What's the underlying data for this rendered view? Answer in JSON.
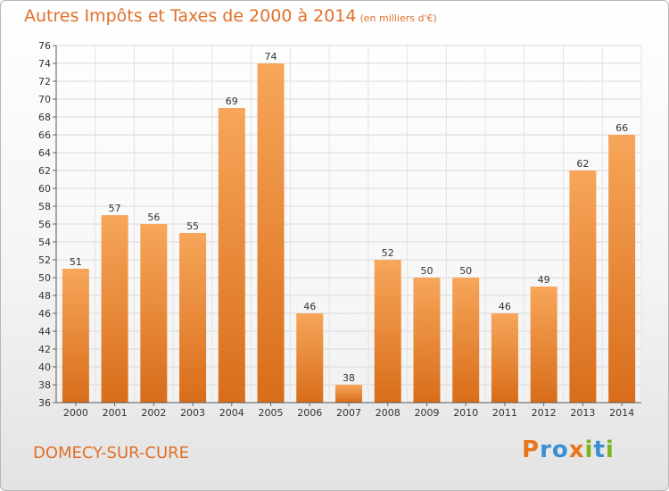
{
  "header": {
    "title": "Autres Impôts et Taxes de 2000 à 2014",
    "subtitle": "(en milliers d'€)"
  },
  "footer": {
    "commune": "DOMECY-SUR-CURE",
    "logo_text": "Proxiti"
  },
  "colors": {
    "accent": "#e0702a",
    "bar_light": "#f7a65a",
    "bar_dark": "#d86d1a",
    "logo_letters": [
      "#e8751c",
      "#3b8fd0",
      "#3b8fd0",
      "#e8751c",
      "#7ab51d",
      "#3b8fd0",
      "#7ab51d"
    ]
  },
  "chart_data": {
    "type": "bar",
    "title": "Autres Impôts et Taxes de 2000 à 2014",
    "subtitle": "(en milliers d'€)",
    "categories": [
      "2000",
      "2001",
      "2002",
      "2003",
      "2004",
      "2005",
      "2006",
      "2007",
      "2008",
      "2009",
      "2010",
      "2011",
      "2012",
      "2013",
      "2014"
    ],
    "values": [
      51,
      57,
      56,
      55,
      69,
      74,
      46,
      38,
      52,
      50,
      50,
      46,
      49,
      62,
      66
    ],
    "ylim": [
      36,
      76
    ],
    "ytick_step": 2,
    "grid": true,
    "data_labels": true
  }
}
